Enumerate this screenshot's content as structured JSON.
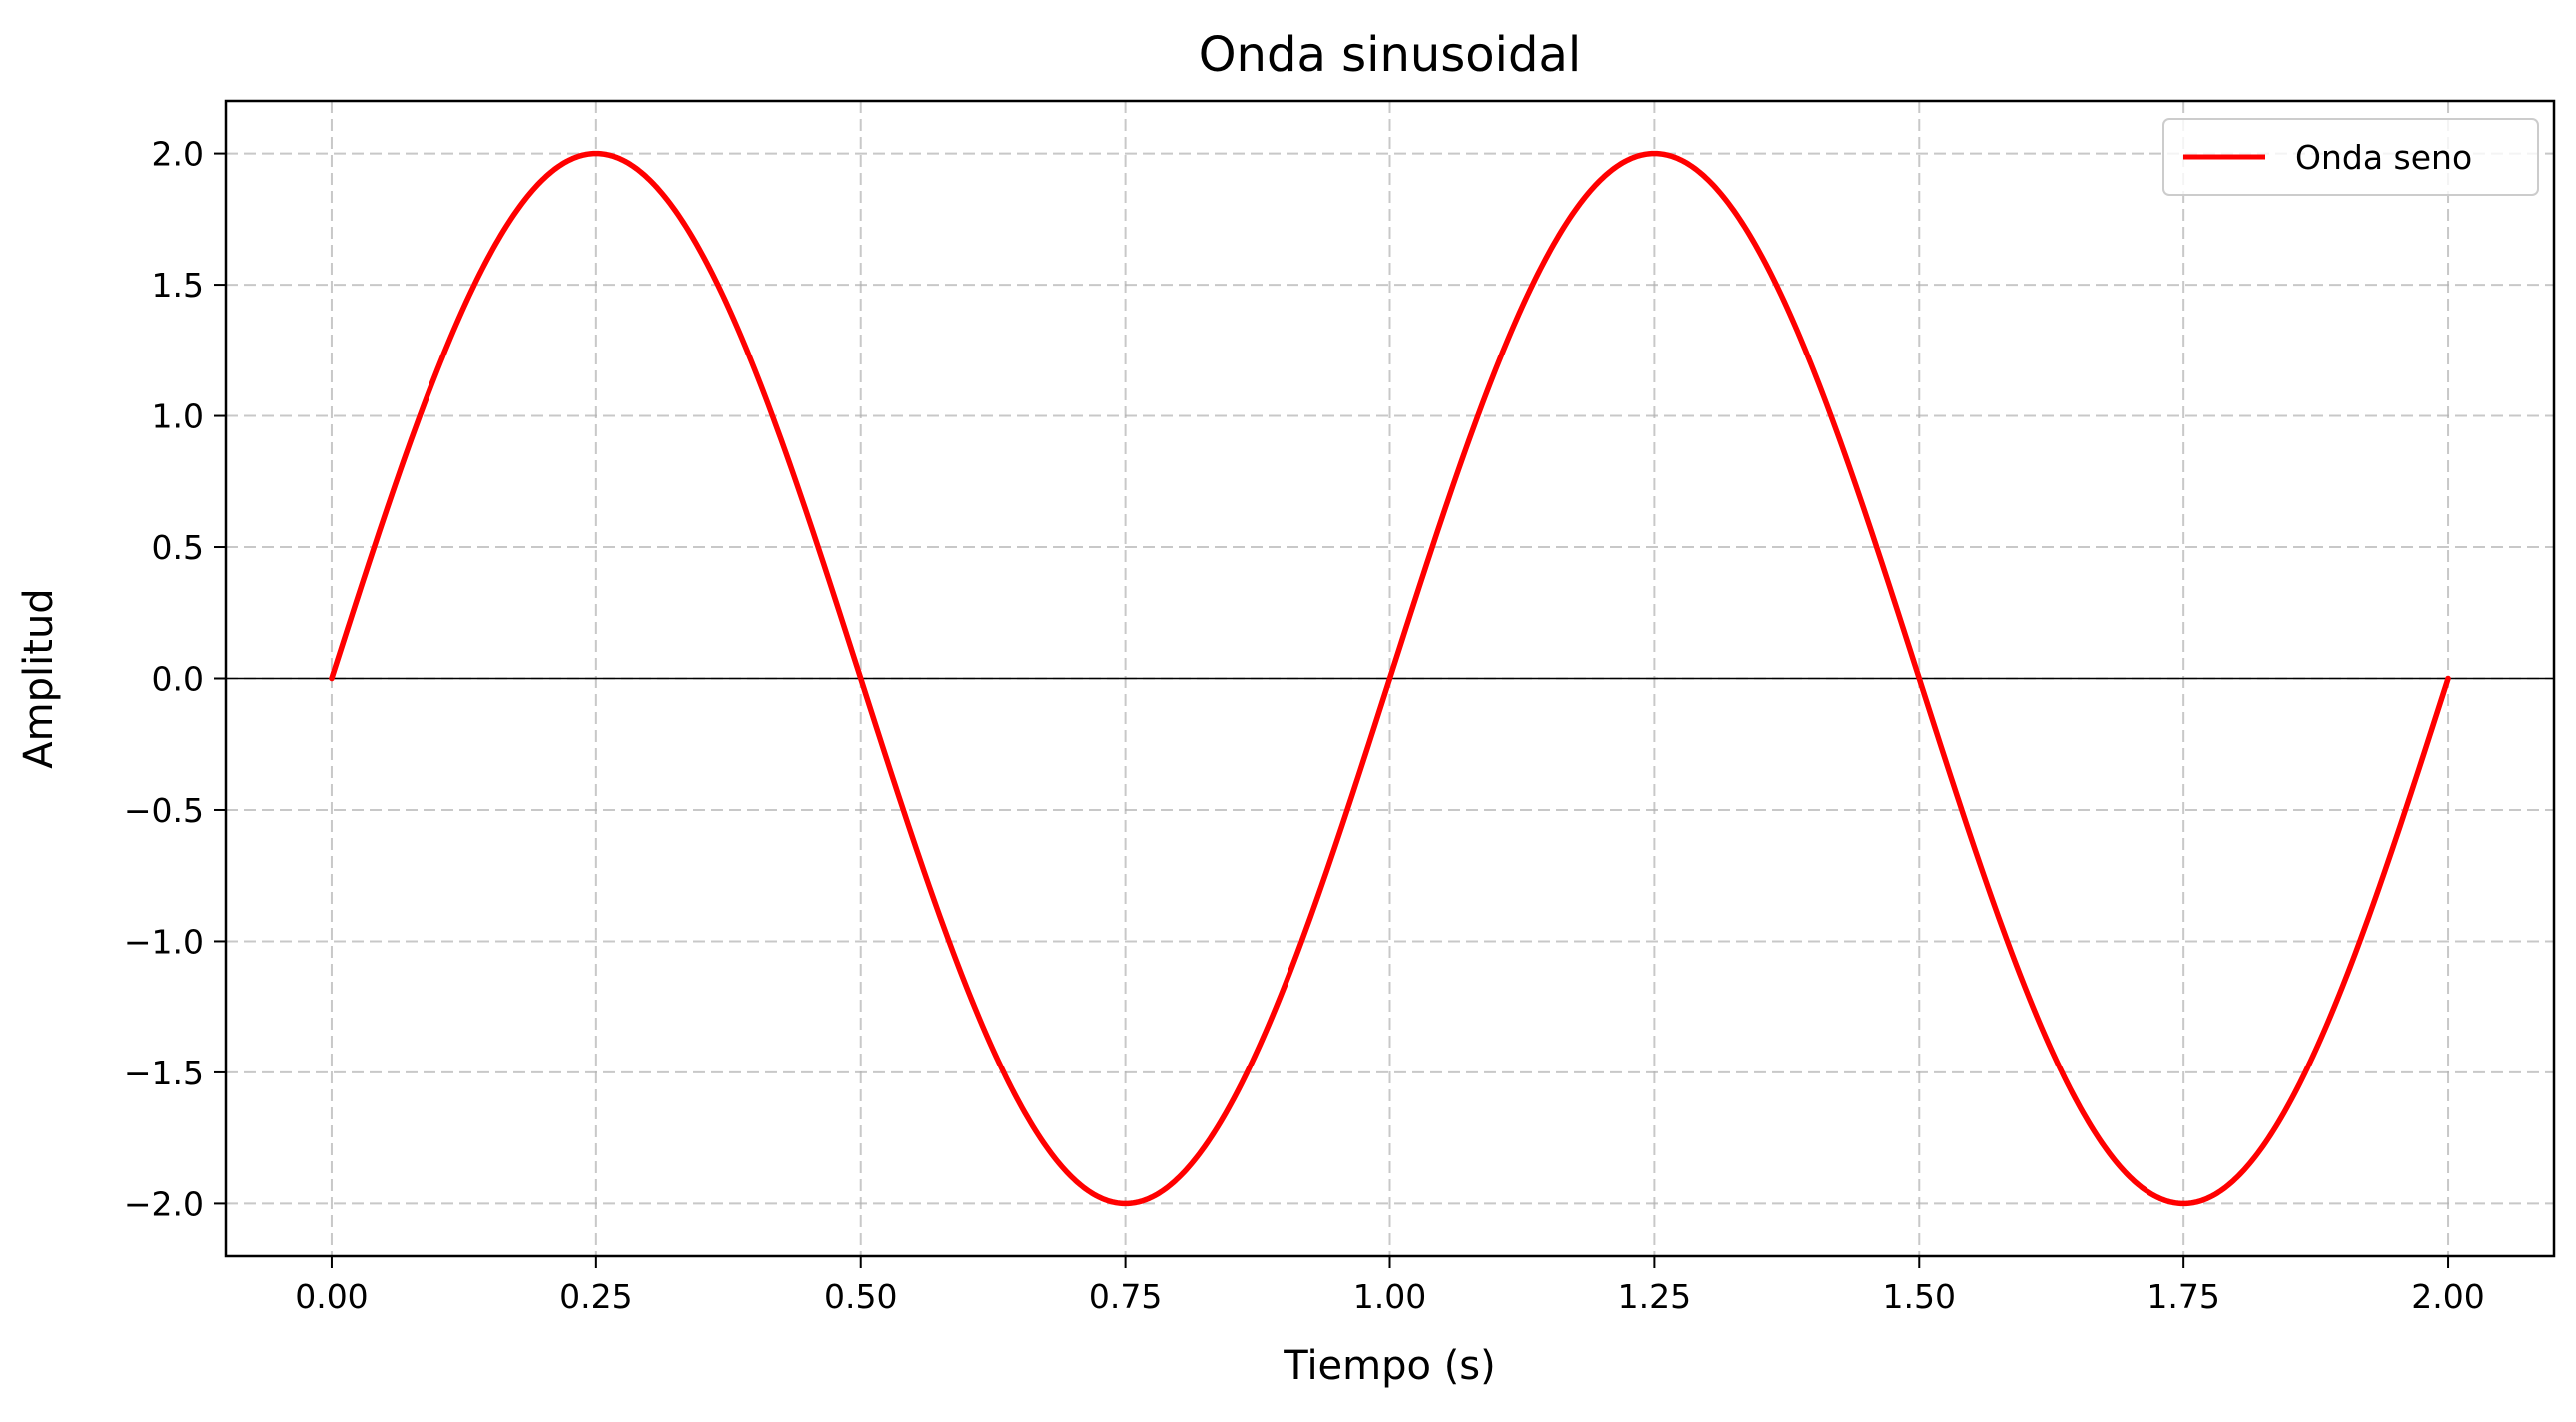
{
  "chart_data": {
    "type": "line",
    "title": "Onda sinusoidal",
    "xlabel": "Tiempo (s)",
    "ylabel": "Amplitud",
    "xlim": [
      -0.1,
      2.1
    ],
    "ylim": [
      -2.2,
      2.2
    ],
    "x_ticks": [
      0.0,
      0.25,
      0.5,
      0.75,
      1.0,
      1.25,
      1.5,
      1.75,
      2.0
    ],
    "x_tick_labels": [
      "0.00",
      "0.25",
      "0.50",
      "0.75",
      "1.00",
      "1.25",
      "1.50",
      "1.75",
      "2.00"
    ],
    "y_ticks": [
      2.0,
      1.5,
      1.0,
      0.5,
      0.0,
      -0.5,
      -1.0,
      -1.5,
      -2.0
    ],
    "y_tick_labels": [
      "2.0",
      "1.5",
      "1.0",
      "0.5",
      "0.0",
      "−0.5",
      "−1.0",
      "−1.5",
      "−2.0"
    ],
    "grid": true,
    "grid_style": "dashed",
    "zero_line": true,
    "legend_position": "top-right",
    "series": [
      {
        "name": "Onda seno",
        "color": "#ff0000",
        "function": "2*sin(2*pi*1*t)",
        "amplitude": 2.0,
        "frequency_hz": 1.0,
        "x": [
          0.0,
          0.125,
          0.25,
          0.375,
          0.5,
          0.625,
          0.75,
          0.875,
          1.0,
          1.125,
          1.25,
          1.375,
          1.5,
          1.625,
          1.75,
          1.875,
          2.0
        ],
        "y": [
          0.0,
          1.414,
          2.0,
          1.414,
          0.0,
          -1.414,
          -2.0,
          -1.414,
          0.0,
          1.414,
          2.0,
          1.414,
          0.0,
          -1.414,
          -2.0,
          -1.414,
          0.0
        ]
      }
    ]
  }
}
